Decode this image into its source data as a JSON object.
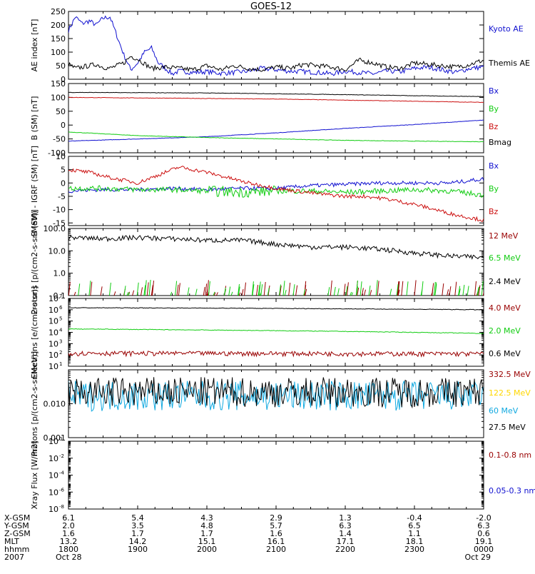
{
  "title": "GOES-12",
  "colors": {
    "black": "#000000",
    "blue": "#1010d0",
    "red": "#cc1111",
    "green": "#11cc11",
    "darkred": "#990000",
    "cyan": "#11a9e0",
    "yellow": "#ffd700"
  },
  "chart_data": [
    {
      "type": "line",
      "panel": "ae",
      "ylabel": "AE index [nT]",
      "ylim": [
        0,
        250
      ],
      "yticks": [
        "250",
        "200",
        "150",
        "100",
        "50",
        "0"
      ],
      "x_range_hours": [
        18,
        24
      ],
      "series": [
        {
          "name": "Kyoto AE",
          "color": "blue",
          "x": [
            18.0,
            18.1,
            18.2,
            18.3,
            18.4,
            18.5,
            18.6,
            18.7,
            18.8,
            18.9,
            19.0,
            19.1,
            19.2,
            19.3,
            19.4,
            19.5,
            19.6,
            19.8,
            20.0,
            20.2,
            20.4,
            20.6,
            20.8,
            21.0,
            21.2,
            21.4,
            21.6,
            21.8,
            22.0,
            22.2,
            22.4,
            22.6,
            22.8,
            23.0,
            23.2,
            23.4,
            23.6,
            23.8,
            24.0
          ],
          "y": [
            180,
            230,
            205,
            215,
            200,
            225,
            230,
            160,
            90,
            35,
            60,
            100,
            115,
            60,
            40,
            20,
            30,
            25,
            28,
            22,
            25,
            30,
            40,
            35,
            30,
            28,
            25,
            20,
            30,
            25,
            20,
            30,
            28,
            40,
            45,
            35,
            25,
            40,
            45
          ]
        },
        {
          "name": "Themis AE",
          "color": "black",
          "x": [
            18.0,
            18.1,
            18.2,
            18.3,
            18.4,
            18.5,
            18.6,
            18.7,
            18.8,
            18.9,
            19.0,
            19.2,
            19.4,
            19.6,
            19.8,
            20.0,
            20.2,
            20.4,
            20.6,
            20.8,
            21.0,
            21.2,
            21.4,
            21.6,
            21.8,
            22.0,
            22.2,
            22.4,
            22.6,
            22.8,
            23.0,
            23.2,
            23.4,
            23.6,
            23.8,
            24.0
          ],
          "y": [
            55,
            40,
            45,
            50,
            55,
            45,
            40,
            50,
            60,
            85,
            75,
            40,
            45,
            40,
            35,
            50,
            35,
            50,
            40,
            35,
            45,
            40,
            55,
            50,
            45,
            35,
            70,
            60,
            45,
            40,
            60,
            55,
            50,
            45,
            55,
            70
          ]
        }
      ]
    },
    {
      "type": "line",
      "panel": "b",
      "ylabel": "B (SM) [nT]",
      "ylim": [
        -100,
        150
      ],
      "yticks": [
        "150",
        "100",
        "50",
        "0",
        "-50",
        "-100"
      ],
      "x_range_hours": [
        18,
        24
      ],
      "series": [
        {
          "name": "Bx",
          "color": "blue",
          "x": [
            18.0,
            19.0,
            20.0,
            21.0,
            22.0,
            23.0,
            24.0
          ],
          "y": [
            -58,
            -50,
            -42,
            -28,
            -12,
            2,
            18
          ]
        },
        {
          "name": "By",
          "color": "green",
          "x": [
            18.0,
            19.0,
            20.0,
            21.0,
            22.0,
            23.0,
            24.0
          ],
          "y": [
            -25,
            -38,
            -45,
            -50,
            -55,
            -58,
            -60
          ]
        },
        {
          "name": "Bz",
          "color": "red",
          "x": [
            18.0,
            19.0,
            20.0,
            21.0,
            22.0,
            23.0,
            24.0
          ],
          "y": [
            100,
            98,
            96,
            94,
            90,
            86,
            82
          ]
        },
        {
          "name": "Bmag",
          "color": "black",
          "x": [
            18.0,
            19.0,
            20.0,
            21.0,
            22.0,
            23.0,
            24.0
          ],
          "y": [
            118,
            117,
            116,
            113,
            110,
            106,
            103
          ]
        }
      ]
    },
    {
      "type": "line",
      "panel": "db",
      "ylabel": "B (SM) - IGRF (SM) [nT]",
      "ylim": [
        -16,
        10
      ],
      "yticks": [
        "10",
        "5",
        "0",
        "-5",
        "-10",
        "-15"
      ],
      "x_range_hours": [
        18,
        24
      ],
      "series": [
        {
          "name": "Bx",
          "color": "blue",
          "x": [
            18.0,
            18.5,
            19.0,
            19.5,
            20.0,
            20.5,
            21.0,
            21.5,
            22.0,
            22.5,
            23.0,
            23.5,
            24.0
          ],
          "y": [
            -3,
            -2.5,
            -2.5,
            -2,
            -2.5,
            -2,
            -2,
            -1,
            -0.5,
            0,
            0,
            0,
            1.5
          ]
        },
        {
          "name": "By",
          "color": "green",
          "x": [
            18.0,
            18.5,
            19.0,
            19.5,
            20.0,
            20.5,
            21.0,
            21.5,
            22.0,
            22.5,
            23.0,
            23.5,
            24.0
          ],
          "y": [
            -2,
            -2,
            -2.5,
            -2.5,
            -3,
            -3.5,
            -3,
            -3,
            -3.5,
            -3,
            -2.5,
            -3,
            -4.5
          ]
        },
        {
          "name": "Bz",
          "color": "red",
          "x": [
            18.0,
            18.3,
            18.6,
            19.0,
            19.3,
            19.6,
            20.0,
            20.3,
            20.6,
            21.0,
            21.3,
            21.6,
            22.0,
            22.3,
            22.6,
            23.0,
            23.3,
            23.6,
            24.0
          ],
          "y": [
            5,
            4,
            2,
            0,
            3,
            6,
            4,
            2,
            0,
            -2,
            -3,
            -4,
            -5,
            -5,
            -6,
            -8,
            -10,
            -12,
            -14
          ]
        }
      ]
    },
    {
      "type": "line",
      "panel": "protons_low",
      "ylabel": "Protons [p/(cm2-s-sr-MeV)]",
      "yscale": "log",
      "ylim": [
        0.1,
        100
      ],
      "yticks": [
        "100.0",
        "10.0",
        "1.0",
        "0.1"
      ],
      "x_range_hours": [
        18,
        24
      ],
      "series": [
        {
          "name": "12 MeV",
          "color": "darkred"
        },
        {
          "name": "6.5 MeV",
          "color": "green"
        },
        {
          "name": "2.4 MeV",
          "color": "black",
          "x": [
            18.0,
            18.5,
            19.0,
            19.5,
            20.0,
            20.5,
            21.0,
            21.5,
            22.0,
            22.5,
            23.0,
            23.5,
            24.0
          ],
          "y": [
            40,
            35,
            40,
            35,
            30,
            30,
            20,
            15,
            15,
            12,
            8,
            6,
            5
          ]
        }
      ]
    },
    {
      "type": "line",
      "panel": "electrons",
      "ylabel": "Electrons [e/(cm2-s-sr)]",
      "yscale": "log",
      "ylim": [
        10,
        10000000
      ],
      "ytick_mantissa": "10",
      "yticks": [
        "7",
        "6",
        "5",
        "4",
        "3",
        "2",
        "1"
      ],
      "x_range_hours": [
        18,
        24
      ],
      "series": [
        {
          "name": "4.0 MeV",
          "color": "darkred",
          "x": [
            18.0,
            24.0
          ],
          "y": [
            150,
            130
          ]
        },
        {
          "name": "2.0 MeV",
          "color": "green",
          "x": [
            18.0,
            20.0,
            22.0,
            24.0
          ],
          "y": [
            20000,
            16000,
            12000,
            8000
          ]
        },
        {
          "name": "0.6 MeV",
          "color": "black",
          "x": [
            18.0,
            20.0,
            22.0,
            24.0
          ],
          "y": [
            1500000,
            1400000,
            1200000,
            1000000
          ]
        }
      ]
    },
    {
      "type": "line",
      "panel": "protons_high",
      "ylabel": "Protons [p/(cm2-s-sr-MeV)]",
      "yscale": "log",
      "ylim": [
        0.001,
        0.1
      ],
      "yticks": [
        "0.010",
        "0.001"
      ],
      "x_range_hours": [
        18,
        24
      ],
      "series": [
        {
          "name": "332.5 MeV",
          "color": "darkred"
        },
        {
          "name": "122.5 MeV",
          "color": "yellow"
        },
        {
          "name": "60 MeV",
          "color": "cyan",
          "x": [
            18.0,
            24.0
          ],
          "y": [
            0.017,
            0.017
          ]
        },
        {
          "name": "27.5 MeV",
          "color": "black",
          "x": [
            18.0,
            24.0
          ],
          "y": [
            0.022,
            0.022
          ]
        }
      ]
    },
    {
      "type": "line",
      "panel": "xray",
      "ylabel": "Xray Flux [W/m2]",
      "yscale": "log",
      "ylim": [
        1e-08,
        1
      ],
      "ytick_mantissa": "10",
      "yticks": [
        "0",
        "-2",
        "-4",
        "-6",
        "-8"
      ],
      "x_range_hours": [
        18,
        24
      ],
      "series": [
        {
          "name": "0.1-0.8 nm",
          "color": "darkred"
        },
        {
          "name": "0.05-0.3 nm",
          "color": "blue"
        }
      ]
    }
  ],
  "footer": {
    "row_labels": [
      "X-GSM",
      "Y-GSM",
      "Z-GSM",
      "MLT",
      "hhmm",
      "2007"
    ],
    "columns": [
      {
        "x_hours": 18,
        "values": [
          "6.1",
          "2.0",
          "1.6",
          "13.2",
          "1800",
          "Oct 28"
        ]
      },
      {
        "x_hours": 19,
        "values": [
          "5.4",
          "3.5",
          "1.7",
          "14.2",
          "1900",
          ""
        ]
      },
      {
        "x_hours": 20,
        "values": [
          "4.3",
          "4.8",
          "1.7",
          "15.1",
          "2000",
          ""
        ]
      },
      {
        "x_hours": 21,
        "values": [
          "2.9",
          "5.7",
          "1.6",
          "16.1",
          "2100",
          ""
        ]
      },
      {
        "x_hours": 22,
        "values": [
          "1.3",
          "6.3",
          "1.4",
          "17.1",
          "2200",
          ""
        ]
      },
      {
        "x_hours": 23,
        "values": [
          "-0.4",
          "6.5",
          "1.1",
          "18.1",
          "2300",
          ""
        ]
      },
      {
        "x_hours": 24,
        "values": [
          "-2.0",
          "6.3",
          "0.6",
          "19.1",
          "0000",
          "Oct 29"
        ]
      }
    ]
  }
}
